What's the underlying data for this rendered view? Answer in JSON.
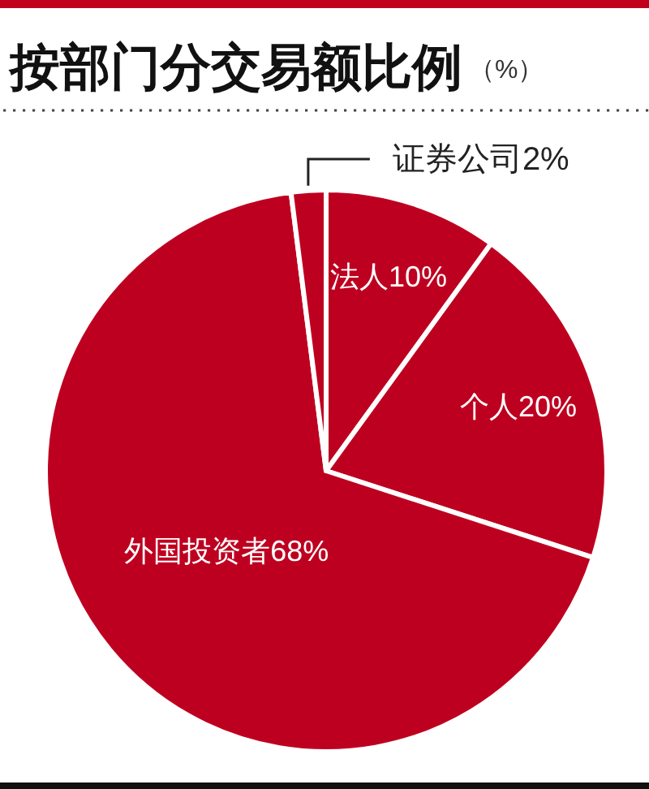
{
  "chart_data": {
    "type": "pie",
    "title": "按部门分交易额比例",
    "subtitle": "（%）",
    "categories": [
      "法人",
      "个人",
      "外国投资者",
      "证券公司"
    ],
    "values": [
      10,
      20,
      68,
      2
    ],
    "value_labels": [
      "10%",
      "20%",
      "68%",
      "2%"
    ],
    "colors": [
      "#be0020",
      "#be0020",
      "#be0020",
      "#be0020"
    ]
  }
}
